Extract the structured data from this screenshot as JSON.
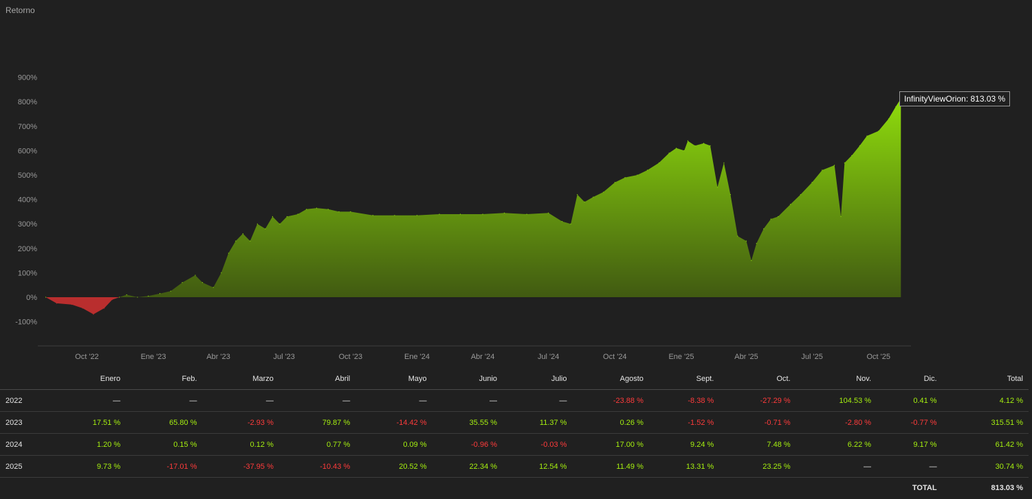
{
  "panel": {
    "title": "Retorno"
  },
  "tooltip": {
    "series": "InfinityViewOrion",
    "value": "813.03 %",
    "text": "InfinityViewOrion: 813.03 %"
  },
  "colors": {
    "positive": "#a6f10f",
    "negative": "#ff3b3b",
    "area_top": "#8fdc0c",
    "area_bottom": "#3a4f12",
    "area_negative": "#b92e2e"
  },
  "chart_data": {
    "type": "area",
    "title": "Retorno",
    "y_ticks": [
      "900%",
      "800%",
      "700%",
      "600%",
      "500%",
      "400%",
      "300%",
      "200%",
      "100%",
      "0%",
      "-100%"
    ],
    "x_ticks": [
      "Oct '22",
      "Ene '23",
      "Abr '23",
      "Jul '23",
      "Oct '23",
      "Ene '24",
      "Abr '24",
      "Jul '24",
      "Oct '24",
      "Ene '25",
      "Abr '25",
      "Jul '25",
      "Oct '25"
    ],
    "ylim": [
      -200,
      1000
    ],
    "series": [
      {
        "name": "InfinityViewOrion",
        "x": [
          "2022-08-05",
          "2022-08-20",
          "2022-09-10",
          "2022-09-25",
          "2022-10-10",
          "2022-10-25",
          "2022-11-05",
          "2022-11-15",
          "2022-11-25",
          "2022-12-10",
          "2022-12-25",
          "2023-01-10",
          "2023-01-25",
          "2023-02-10",
          "2023-02-28",
          "2023-03-10",
          "2023-03-25",
          "2023-04-05",
          "2023-04-15",
          "2023-04-25",
          "2023-05-05",
          "2023-05-15",
          "2023-05-25",
          "2023-06-05",
          "2023-06-15",
          "2023-06-25",
          "2023-07-05",
          "2023-07-20",
          "2023-08-01",
          "2023-08-15",
          "2023-08-31",
          "2023-09-15",
          "2023-10-01",
          "2023-11-01",
          "2023-12-01",
          "2024-01-01",
          "2024-02-01",
          "2024-03-01",
          "2024-04-01",
          "2024-05-01",
          "2024-06-01",
          "2024-07-01",
          "2024-07-20",
          "2024-08-01",
          "2024-08-10",
          "2024-08-20",
          "2024-09-01",
          "2024-09-15",
          "2024-10-01",
          "2024-10-15",
          "2024-11-01",
          "2024-11-15",
          "2024-12-01",
          "2024-12-15",
          "2024-12-25",
          "2025-01-05",
          "2025-01-10",
          "2025-01-20",
          "2025-02-01",
          "2025-02-10",
          "2025-02-20",
          "2025-03-01",
          "2025-03-10",
          "2025-03-20",
          "2025-04-01",
          "2025-04-08",
          "2025-04-15",
          "2025-04-25",
          "2025-05-05",
          "2025-05-15",
          "2025-06-01",
          "2025-06-15",
          "2025-07-01",
          "2025-07-15",
          "2025-08-01",
          "2025-08-10",
          "2025-08-15",
          "2025-08-25",
          "2025-09-05",
          "2025-09-15",
          "2025-10-01",
          "2025-10-15",
          "2025-10-25",
          "2025-11-01"
        ],
        "y": [
          0,
          -25,
          -30,
          -45,
          -70,
          -45,
          -10,
          0,
          10,
          0,
          5,
          15,
          25,
          60,
          90,
          60,
          40,
          100,
          180,
          230,
          260,
          230,
          300,
          280,
          330,
          300,
          330,
          340,
          360,
          365,
          360,
          350,
          350,
          335,
          335,
          335,
          340,
          340,
          340,
          345,
          340,
          345,
          310,
          300,
          420,
          390,
          410,
          430,
          470,
          490,
          500,
          520,
          550,
          590,
          610,
          600,
          640,
          620,
          630,
          620,
          450,
          550,
          420,
          250,
          230,
          150,
          220,
          280,
          320,
          330,
          380,
          420,
          470,
          520,
          540,
          330,
          550,
          580,
          620,
          660,
          680,
          730,
          780,
          813
        ]
      }
    ]
  },
  "table": {
    "headers": [
      "",
      "Enero",
      "Feb.",
      "Marzo",
      "Abril",
      "Mayo",
      "Junio",
      "Julio",
      "Agosto",
      "Sept.",
      "Oct.",
      "Nov.",
      "Dic.",
      "Total"
    ],
    "rows": [
      {
        "year": "2022",
        "cells": [
          "—",
          "—",
          "—",
          "—",
          "—",
          "—",
          "—",
          "-23.88 %",
          "-8.38 %",
          "-27.29 %",
          "104.53 %",
          "0.41 %",
          "4.12 %"
        ]
      },
      {
        "year": "2023",
        "cells": [
          "17.51 %",
          "65.80 %",
          "-2.93 %",
          "79.87 %",
          "-14.42 %",
          "35.55 %",
          "11.37 %",
          "0.26 %",
          "-1.52 %",
          "-0.71 %",
          "-2.80 %",
          "-0.77 %",
          "315.51 %"
        ]
      },
      {
        "year": "2024",
        "cells": [
          "1.20 %",
          "0.15 %",
          "0.12 %",
          "0.77 %",
          "0.09 %",
          "-0.96 %",
          "-0.03 %",
          "17.00 %",
          "9.24 %",
          "7.48 %",
          "6.22 %",
          "9.17 %",
          "61.42 %"
        ]
      },
      {
        "year": "2025",
        "cells": [
          "9.73 %",
          "-17.01 %",
          "-37.95 %",
          "-10.43 %",
          "20.52 %",
          "22.34 %",
          "12.54 %",
          "11.49 %",
          "13.31 %",
          "23.25 %",
          "—",
          "—",
          "30.74 %"
        ]
      }
    ],
    "total_label": "TOTAL",
    "total_value": "813.03 %"
  }
}
